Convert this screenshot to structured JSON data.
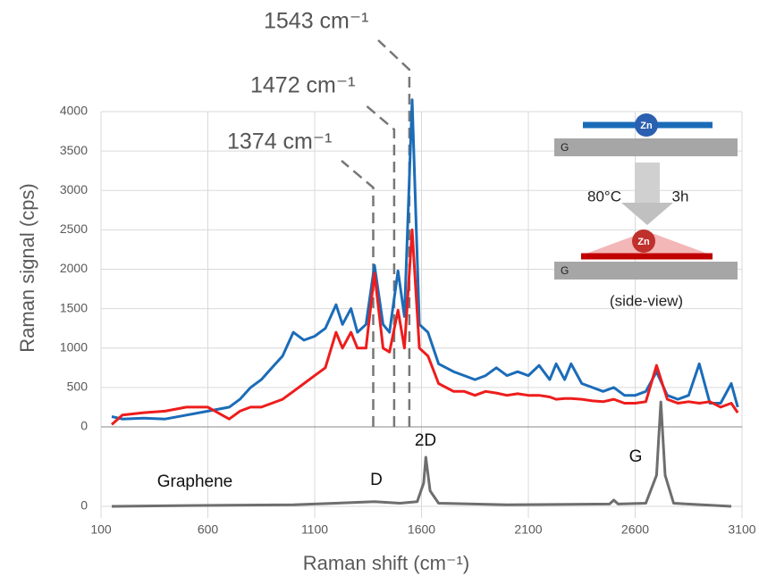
{
  "chart_data": [
    {
      "type": "line",
      "ylabel": "Raman signal  (cps)",
      "ylim": [
        0,
        4000
      ],
      "yticks": [
        0,
        500,
        1000,
        1500,
        2000,
        2500,
        3000,
        3500,
        4000
      ],
      "grid": true,
      "x": [
        150,
        200,
        300,
        400,
        500,
        600,
        700,
        750,
        800,
        850,
        900,
        950,
        1000,
        1050,
        1100,
        1150,
        1200,
        1230,
        1270,
        1300,
        1340,
        1380,
        1420,
        1450,
        1490,
        1520,
        1556,
        1590,
        1630,
        1680,
        1750,
        1800,
        1850,
        1900,
        1950,
        2000,
        2050,
        2100,
        2150,
        2200,
        2230,
        2270,
        2300,
        2350,
        2400,
        2450,
        2500,
        2550,
        2600,
        2650,
        2700,
        2750,
        2800,
        2850,
        2900,
        2950,
        3000,
        3050,
        3080
      ],
      "series": [
        {
          "color": "#1b6cb8",
          "values": [
            130,
            100,
            110,
            100,
            150,
            200,
            250,
            350,
            500,
            600,
            750,
            900,
            1200,
            1100,
            1150,
            1250,
            1550,
            1300,
            1500,
            1200,
            1300,
            2050,
            1300,
            1200,
            1980,
            1400,
            4150,
            1300,
            1200,
            800,
            700,
            650,
            600,
            650,
            750,
            650,
            700,
            650,
            780,
            600,
            800,
            600,
            800,
            550,
            500,
            450,
            500,
            400,
            400,
            450,
            700,
            400,
            350,
            400,
            800,
            300,
            300,
            550,
            250
          ]
        },
        {
          "color": "#ee1c1c",
          "values": [
            30,
            150,
            180,
            200,
            250,
            250,
            100,
            200,
            250,
            250,
            300,
            350,
            450,
            550,
            650,
            750,
            1200,
            1000,
            1200,
            1000,
            1000,
            1950,
            1000,
            950,
            1480,
            1000,
            2500,
            1000,
            900,
            550,
            450,
            450,
            400,
            450,
            430,
            400,
            420,
            400,
            400,
            380,
            350,
            360,
            360,
            350,
            330,
            320,
            350,
            300,
            300,
            320,
            780,
            350,
            300,
            320,
            300,
            320,
            250,
            300,
            180
          ]
        }
      ],
      "annotations": [
        {
          "text": "1374 cm⁻¹",
          "x": 1374
        },
        {
          "text": "1472 cm⁻¹",
          "x": 1472
        },
        {
          "text": "1543 cm⁻¹",
          "x": 1543
        }
      ],
      "inset": {
        "top_atom": "Zn",
        "top_substrate": "G",
        "temperature": "80°C",
        "time": "3h",
        "bottom_atom": "Zn",
        "bottom_substrate": "G",
        "caption": "(side-view)"
      }
    },
    {
      "type": "line",
      "xlabel": "Raman shift  (cm⁻¹)",
      "xlim": [
        100,
        3100
      ],
      "xticks": [
        100,
        600,
        1100,
        1600,
        2100,
        2600,
        3100
      ],
      "ylim": [
        0,
        500
      ],
      "yticks": [
        0
      ],
      "grid": true,
      "x": [
        150,
        500,
        1000,
        1380,
        1500,
        1580,
        1610,
        1620,
        1640,
        1680,
        2000,
        2480,
        2500,
        2520,
        2650,
        2700,
        2720,
        2740,
        2780,
        3050
      ],
      "series": [
        {
          "color": "#6e6e6e",
          "values": [
            0,
            5,
            10,
            30,
            20,
            30,
            150,
            316,
            100,
            20,
            10,
            15,
            40,
            15,
            20,
            200,
            672,
            200,
            20,
            0
          ]
        }
      ],
      "labels": [
        "Graphene",
        "D",
        "2D",
        "G"
      ]
    }
  ]
}
